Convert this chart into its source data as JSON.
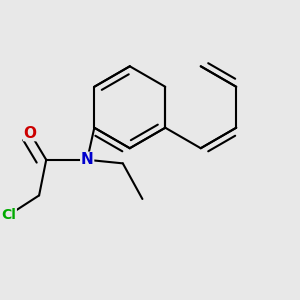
{
  "background_color": "#e8e8e8",
  "bond_color": "#000000",
  "N_color": "#0000cc",
  "O_color": "#cc0000",
  "Cl_color": "#00aa00",
  "bond_width": 1.5,
  "dbo": 0.018,
  "figsize": [
    3.0,
    3.0
  ],
  "dpi": 100,
  "xlim": [
    0.05,
    0.85
  ],
  "ylim": [
    0.1,
    0.9
  ]
}
